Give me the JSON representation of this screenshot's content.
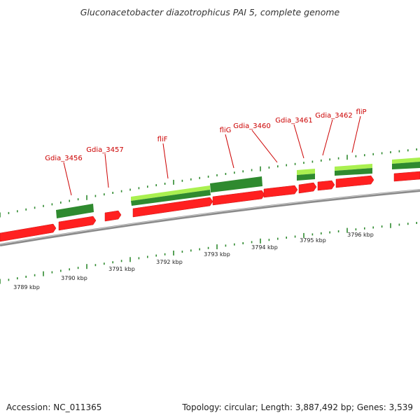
{
  "title": "Gluconacetobacter diazotrophicus PAI 5, complete genome",
  "footer": {
    "accession": "Accession: NC_011365",
    "summary": "Topology: circular; Length: 3,887,492 bp; Genes: 3,539"
  },
  "colors": {
    "backbone": "#8a8a8a",
    "forward_cds": "#ff2020",
    "gene_dark": "#2f8a2f",
    "gene_light": "#aaf050",
    "label": "#cc0000",
    "tick": "#2f8a2f"
  },
  "scale": {
    "labels": [
      "3789 kbp",
      "3790 kbp",
      "3791 kbp",
      "3792 kbp",
      "3793 kbp",
      "3794 kbp",
      "3795 kbp",
      "3796 kbp"
    ]
  },
  "genes": [
    {
      "id": "gdia3456",
      "label": "Gdia_3456"
    },
    {
      "id": "gdia3457",
      "label": "Gdia_3457"
    },
    {
      "id": "flif",
      "label": "fliF"
    },
    {
      "id": "flig",
      "label": "fliG"
    },
    {
      "id": "gdia3460",
      "label": "Gdia_3460"
    },
    {
      "id": "gdia3461",
      "label": "Gdia_3461"
    },
    {
      "id": "gdia3462",
      "label": "Gdia_3462"
    },
    {
      "id": "flip",
      "label": "fliP"
    }
  ]
}
